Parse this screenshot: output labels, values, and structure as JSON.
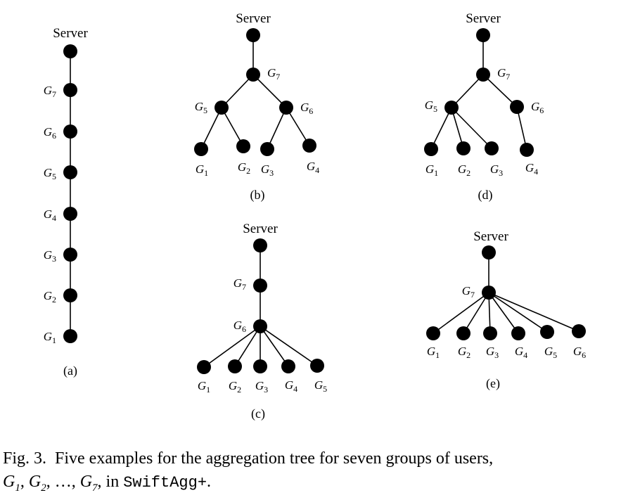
{
  "figure": {
    "server_label": "Server",
    "group_symbol": "G",
    "panels": [
      {
        "id": "a",
        "label": "(a)",
        "nodes": [
          {
            "key": "S",
            "text": "Server"
          },
          {
            "key": "7",
            "text": "7"
          },
          {
            "key": "6",
            "text": "6"
          },
          {
            "key": "5",
            "text": "5"
          },
          {
            "key": "4",
            "text": "4"
          },
          {
            "key": "3",
            "text": "3"
          },
          {
            "key": "2",
            "text": "2"
          },
          {
            "key": "1",
            "text": "1"
          }
        ],
        "edges": [
          [
            "S",
            "7"
          ],
          [
            "7",
            "6"
          ],
          [
            "6",
            "5"
          ],
          [
            "5",
            "4"
          ],
          [
            "4",
            "3"
          ],
          [
            "3",
            "2"
          ],
          [
            "2",
            "1"
          ]
        ]
      },
      {
        "id": "b",
        "label": "(b)",
        "nodes": [
          {
            "key": "S",
            "text": "Server"
          },
          {
            "key": "7",
            "text": "7"
          },
          {
            "key": "5",
            "text": "5"
          },
          {
            "key": "6",
            "text": "6"
          },
          {
            "key": "1",
            "text": "1"
          },
          {
            "key": "2",
            "text": "2"
          },
          {
            "key": "3",
            "text": "3"
          },
          {
            "key": "4",
            "text": "4"
          }
        ],
        "edges": [
          [
            "S",
            "7"
          ],
          [
            "7",
            "5"
          ],
          [
            "7",
            "6"
          ],
          [
            "5",
            "1"
          ],
          [
            "5",
            "2"
          ],
          [
            "6",
            "3"
          ],
          [
            "6",
            "4"
          ]
        ]
      },
      {
        "id": "c",
        "label": "(c)",
        "nodes": [
          {
            "key": "S",
            "text": "Server"
          },
          {
            "key": "7",
            "text": "7"
          },
          {
            "key": "6",
            "text": "6"
          },
          {
            "key": "1",
            "text": "1"
          },
          {
            "key": "2",
            "text": "2"
          },
          {
            "key": "3",
            "text": "3"
          },
          {
            "key": "4",
            "text": "4"
          },
          {
            "key": "5",
            "text": "5"
          }
        ],
        "edges": [
          [
            "S",
            "7"
          ],
          [
            "7",
            "6"
          ],
          [
            "6",
            "1"
          ],
          [
            "6",
            "2"
          ],
          [
            "6",
            "3"
          ],
          [
            "6",
            "4"
          ],
          [
            "6",
            "5"
          ]
        ]
      },
      {
        "id": "d",
        "label": "(d)",
        "nodes": [
          {
            "key": "S",
            "text": "Server"
          },
          {
            "key": "7",
            "text": "7"
          },
          {
            "key": "5",
            "text": "5"
          },
          {
            "key": "6",
            "text": "6"
          },
          {
            "key": "1",
            "text": "1"
          },
          {
            "key": "2",
            "text": "2"
          },
          {
            "key": "3",
            "text": "3"
          },
          {
            "key": "4",
            "text": "4"
          }
        ],
        "edges": [
          [
            "S",
            "7"
          ],
          [
            "7",
            "5"
          ],
          [
            "7",
            "6"
          ],
          [
            "5",
            "1"
          ],
          [
            "5",
            "2"
          ],
          [
            "5",
            "3"
          ],
          [
            "6",
            "4"
          ]
        ]
      },
      {
        "id": "e",
        "label": "(e)",
        "nodes": [
          {
            "key": "S",
            "text": "Server"
          },
          {
            "key": "7",
            "text": "7"
          },
          {
            "key": "1",
            "text": "1"
          },
          {
            "key": "2",
            "text": "2"
          },
          {
            "key": "3",
            "text": "3"
          },
          {
            "key": "4",
            "text": "4"
          },
          {
            "key": "5",
            "text": "5"
          },
          {
            "key": "6",
            "text": "6"
          }
        ],
        "edges": [
          [
            "S",
            "7"
          ],
          [
            "7",
            "1"
          ],
          [
            "7",
            "2"
          ],
          [
            "7",
            "3"
          ],
          [
            "7",
            "4"
          ],
          [
            "7",
            "5"
          ],
          [
            "7",
            "6"
          ]
        ]
      }
    ]
  },
  "caption": {
    "fig_label": "Fig. 3.",
    "text_before": "Five examples for the aggregation tree for seven groups of users,",
    "g1_sub": "1",
    "g2_sub": "2",
    "ellipsis": "…",
    "g7_sub": "7",
    "text_in": "in",
    "system_name": "SwiftAgg+",
    "period": "."
  }
}
